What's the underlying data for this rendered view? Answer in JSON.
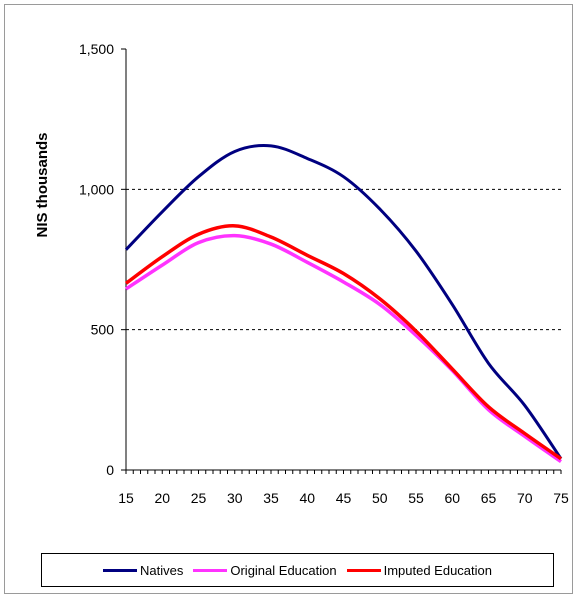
{
  "chart_data": {
    "type": "line",
    "title": "",
    "xlabel": "",
    "ylabel": "NIS thousands",
    "xlim": [
      15,
      75
    ],
    "ylim": [
      0,
      1500
    ],
    "x_ticks": [
      15,
      20,
      25,
      30,
      35,
      40,
      45,
      50,
      55,
      60,
      65,
      70,
      75
    ],
    "y_ticks": [
      0,
      500,
      1000,
      1500
    ],
    "y_tick_labels": [
      "0",
      "500",
      "1,000",
      "1,500"
    ],
    "gridlines": [
      500,
      1000
    ],
    "legend_position": "bottom",
    "x": [
      15,
      20,
      25,
      30,
      35,
      40,
      45,
      50,
      55,
      60,
      65,
      70,
      75
    ],
    "series": [
      {
        "name": "Natives",
        "color": "#000080",
        "values": [
          785,
          920,
          1045,
          1135,
          1155,
          1110,
          1045,
          930,
          780,
          590,
          380,
          230,
          40
        ]
      },
      {
        "name": "Original Education",
        "color": "#ff33ff",
        "values": [
          645,
          730,
          810,
          835,
          805,
          740,
          670,
          590,
          480,
          355,
          215,
          120,
          30
        ]
      },
      {
        "name": "Imputed Education",
        "color": "#ff0000",
        "values": [
          665,
          760,
          840,
          870,
          830,
          765,
          700,
          610,
          495,
          360,
          225,
          130,
          40
        ]
      }
    ]
  }
}
